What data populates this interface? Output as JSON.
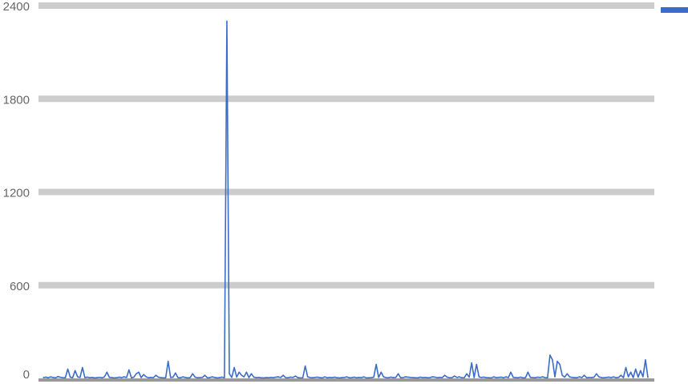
{
  "chart_data": {
    "type": "line",
    "title": "",
    "xlabel": "",
    "ylabel": "",
    "ylim": [
      0,
      2400
    ],
    "yticks": [
      0,
      600,
      1200,
      1800,
      2400
    ],
    "ytick_labels": [
      "0",
      "600",
      "1200",
      "1800",
      "2400"
    ],
    "grid": true,
    "legend": "top-right",
    "series": [
      {
        "color": "#3a6cc8",
        "values": [
          5,
          8,
          4,
          10,
          6,
          3,
          12,
          7,
          5,
          4,
          60,
          8,
          5,
          50,
          10,
          6,
          70,
          5,
          8,
          4,
          6,
          3,
          5,
          7,
          4,
          10,
          40,
          6,
          5,
          3,
          4,
          8,
          5,
          10,
          6,
          55,
          4,
          8,
          30,
          40,
          5,
          25,
          10,
          4,
          6,
          5,
          20,
          8,
          5,
          3,
          4,
          110,
          6,
          8,
          35,
          5,
          4,
          10,
          6,
          3,
          5,
          30,
          8,
          4,
          5,
          6,
          20,
          4,
          5,
          10,
          6,
          3,
          5,
          8,
          4,
          2300,
          30,
          6,
          70,
          8,
          40,
          20,
          10,
          40,
          5,
          30,
          8,
          5,
          6,
          4,
          3,
          5,
          4,
          6,
          5,
          8,
          10,
          6,
          20,
          5,
          4,
          8,
          6,
          15,
          5,
          3,
          4,
          80,
          10,
          5,
          4,
          6,
          8,
          5,
          3,
          10,
          4,
          6,
          5,
          8,
          4,
          3,
          5,
          6,
          10,
          4,
          5,
          8,
          4,
          6,
          5,
          10,
          3,
          4,
          5,
          8,
          90,
          6,
          40,
          10,
          5,
          4,
          8,
          5,
          6,
          30,
          4,
          5,
          10,
          8,
          6,
          5,
          4,
          3,
          8,
          5,
          6,
          4,
          5,
          10,
          8,
          4,
          6,
          5,
          20,
          8,
          4,
          5,
          15,
          6,
          10,
          4,
          5,
          30,
          8,
          100,
          5,
          90,
          10,
          6,
          8,
          5,
          4,
          3,
          10,
          5,
          6,
          8,
          4,
          10,
          5,
          40,
          6,
          5,
          4,
          8,
          3,
          5,
          40,
          6,
          5,
          4,
          8,
          6,
          10,
          5,
          4,
          150,
          120,
          10,
          110,
          90,
          20,
          8,
          30,
          10,
          6,
          5,
          4,
          10,
          5,
          20,
          4,
          6,
          5,
          8,
          30,
          10,
          5,
          4,
          6,
          8,
          5,
          10,
          4,
          6,
          20,
          5,
          70,
          10,
          40,
          5,
          60,
          8,
          50,
          10,
          120,
          5
        ]
      }
    ]
  }
}
